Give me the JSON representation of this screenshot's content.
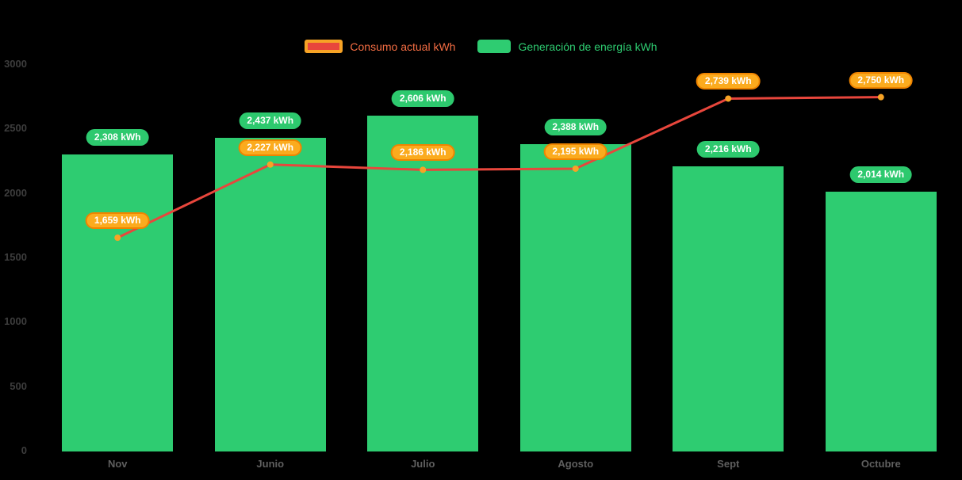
{
  "legend": {
    "consumption_label": "Consumo actual kWh",
    "generation_label": "Generación de energía kWh"
  },
  "chart_data": {
    "type": "bar",
    "subtype": "bar+line combo",
    "categories": [
      "Nov",
      "Junio",
      "Julio",
      "Agosto",
      "Sept",
      "Octubre"
    ],
    "series": [
      {
        "name": "Consumo actual kWh",
        "type": "line",
        "color": "#e8463c",
        "marker_color": "#f7a325",
        "values": [
          1659,
          2227,
          2186,
          2195,
          2739,
          2750
        ],
        "labels": [
          "1,659 kWh",
          "2,227 kWh",
          "2,186 kWh",
          "2,195 kWh",
          "2,739 kWh",
          "2,750 kWh"
        ]
      },
      {
        "name": "Generación de energía kWh",
        "type": "bar",
        "color": "#2ecc71",
        "values": [
          2308,
          2437,
          2606,
          2388,
          2216,
          2014
        ],
        "labels": [
          "2,308 kWh",
          "2,437 kWh",
          "2,606 kWh",
          "2,388 kWh",
          "2,216 kWh",
          "2,014 kWh"
        ]
      }
    ],
    "y_ticks": [
      0,
      500,
      1000,
      1500,
      2000,
      2500,
      3000
    ],
    "ylim": [
      0,
      3000
    ],
    "xlabel": "",
    "ylabel": "",
    "grid": false,
    "legend_position": "top-center"
  },
  "colors": {
    "background": "#000000",
    "bar_green": "#2ecc71",
    "line_red": "#e8463c",
    "marker_orange": "#f7a325",
    "pill_green_bg": "#2dc96e",
    "pill_orange_bg": "#fbab1e",
    "pill_orange_border": "#ef8400",
    "legend_consumption_text": "#f46d43",
    "legend_generation_text": "#2ecc71",
    "axis_y_text": "#3d3d3d",
    "axis_x_text": "#5f5f5f"
  }
}
